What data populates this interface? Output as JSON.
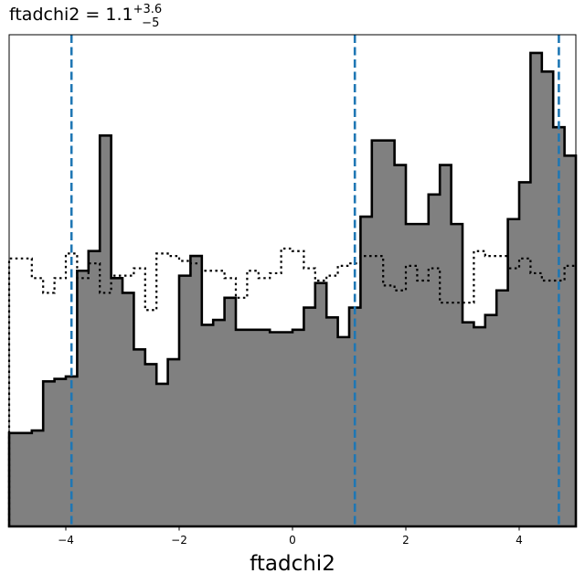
{
  "title": {
    "base": "ftadchi2 = 1.1",
    "sup": "+3.6",
    "sub": "−5"
  },
  "chart_data": {
    "type": "histogram",
    "xlabel": "ftadchi2",
    "ylabel": "",
    "xlim": [
      -5,
      5
    ],
    "ylim": [
      0,
      1
    ],
    "xticks": [
      -4,
      -2,
      0,
      2,
      4
    ],
    "xtick_labels": [
      "−4",
      "−2",
      "0",
      "2",
      "4"
    ],
    "yticks_visible": false,
    "grid": false,
    "bin_edges": [
      -5.0,
      -4.6,
      -4.4,
      -4.2,
      -4.0,
      -3.8,
      -3.6,
      -3.4,
      -3.2,
      -3.0,
      -2.8,
      -2.6,
      -2.4,
      -2.2,
      -2.0,
      -1.8,
      -1.6,
      -1.4,
      -1.2,
      -1.0,
      -0.8,
      -0.6,
      -0.4,
      -0.2,
      0.0,
      0.2,
      0.4,
      0.6,
      0.8,
      1.0,
      1.2,
      1.4,
      1.6,
      1.8,
      2.0,
      2.2,
      2.4,
      2.6,
      2.8,
      3.0,
      3.2,
      3.4,
      3.6,
      3.8,
      4.0,
      4.2,
      4.4,
      4.6,
      4.8,
      5.0
    ],
    "series": [
      {
        "style": "filled-step",
        "fill": "#808080",
        "edge": "#000000",
        "values": [
          0.19,
          0.195,
          0.295,
          0.3,
          0.305,
          0.52,
          0.56,
          0.795,
          0.505,
          0.475,
          0.36,
          0.33,
          0.29,
          0.34,
          0.51,
          0.55,
          0.41,
          0.42,
          0.465,
          0.4,
          0.4,
          0.4,
          0.395,
          0.395,
          0.4,
          0.445,
          0.495,
          0.425,
          0.385,
          0.445,
          0.63,
          0.785,
          0.785,
          0.735,
          0.615,
          0.615,
          0.675,
          0.735,
          0.615,
          0.415,
          0.405,
          0.43,
          0.48,
          0.625,
          0.7,
          0.963,
          0.925,
          0.812,
          0.754
        ]
      },
      {
        "style": "dotted-step",
        "edge": "#000000",
        "values": [
          0.545,
          0.505,
          0.475,
          0.505,
          0.555,
          0.505,
          0.535,
          0.475,
          0.51,
          0.51,
          0.525,
          0.44,
          0.555,
          0.55,
          0.54,
          0.535,
          0.52,
          0.52,
          0.505,
          0.465,
          0.52,
          0.505,
          0.515,
          0.565,
          0.56,
          0.525,
          0.5,
          0.51,
          0.53,
          0.535,
          0.55,
          0.55,
          0.49,
          0.48,
          0.53,
          0.5,
          0.525,
          0.455,
          0.455,
          0.455,
          0.56,
          0.55,
          0.55,
          0.525,
          0.545,
          0.515,
          0.5,
          0.5,
          0.53
        ]
      }
    ],
    "vlines": [
      {
        "x": -3.9,
        "color": "#1f77b4",
        "style": "dashed"
      },
      {
        "x": 1.1,
        "color": "#1f77b4",
        "style": "dashed"
      },
      {
        "x": 4.7,
        "color": "#1f77b4",
        "style": "dashed"
      }
    ]
  }
}
